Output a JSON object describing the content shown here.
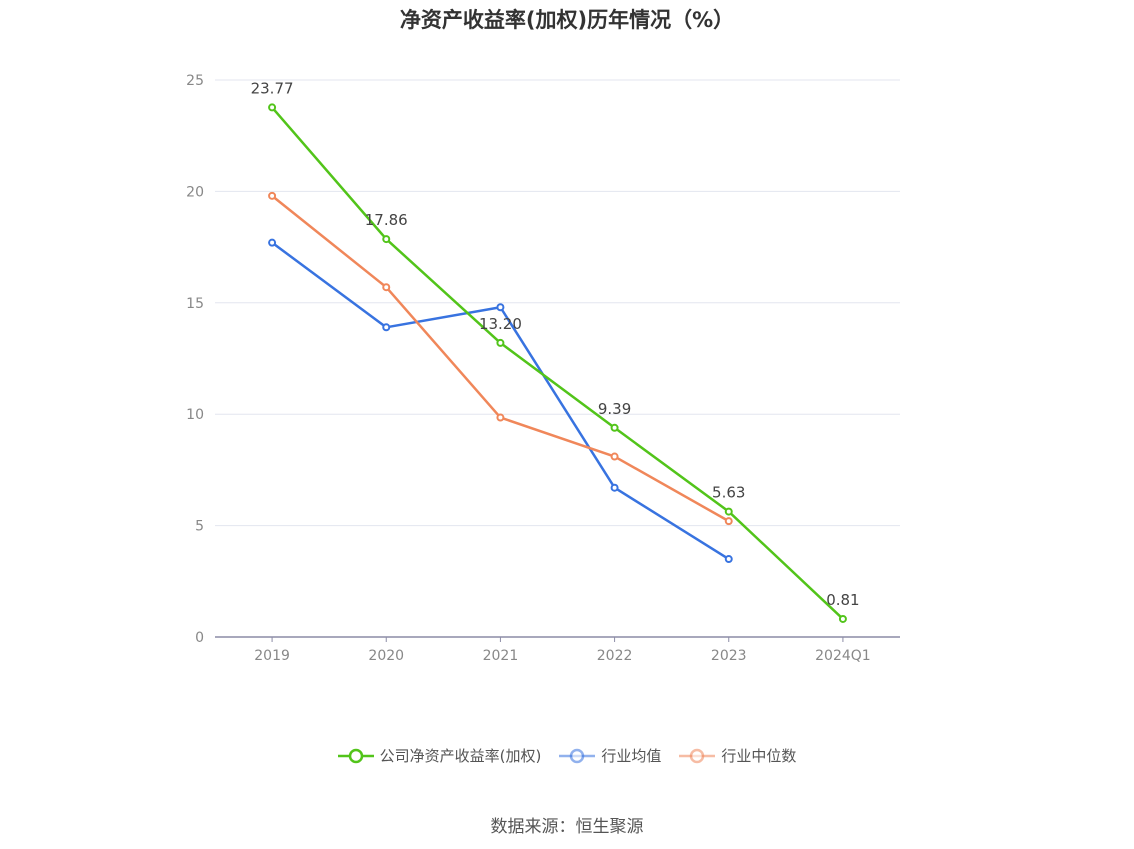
{
  "chart_data": {
    "type": "line",
    "title": "净资产收益率(加权)历年情况（%）",
    "categories": [
      "2019",
      "2020",
      "2021",
      "2022",
      "2023",
      "2024Q1"
    ],
    "ylim": [
      0,
      25
    ],
    "yticks": [
      0,
      5,
      10,
      15,
      20,
      25
    ],
    "grid": true,
    "legend_position": "bottom",
    "series": [
      {
        "name": "公司净资产收益率(加权)",
        "color": "#52c41a",
        "values": [
          23.77,
          17.86,
          13.2,
          9.39,
          5.63,
          0.81
        ],
        "labels": true
      },
      {
        "name": "行业均值",
        "color": "#3873e0",
        "values": [
          17.7,
          13.9,
          14.8,
          6.7,
          3.5,
          null
        ],
        "labels": false
      },
      {
        "name": "行业中位数",
        "color": "#f0875a",
        "values": [
          19.8,
          15.7,
          9.85,
          8.1,
          5.2,
          null
        ],
        "labels": false
      }
    ]
  },
  "source": "数据来源：恒生聚源"
}
